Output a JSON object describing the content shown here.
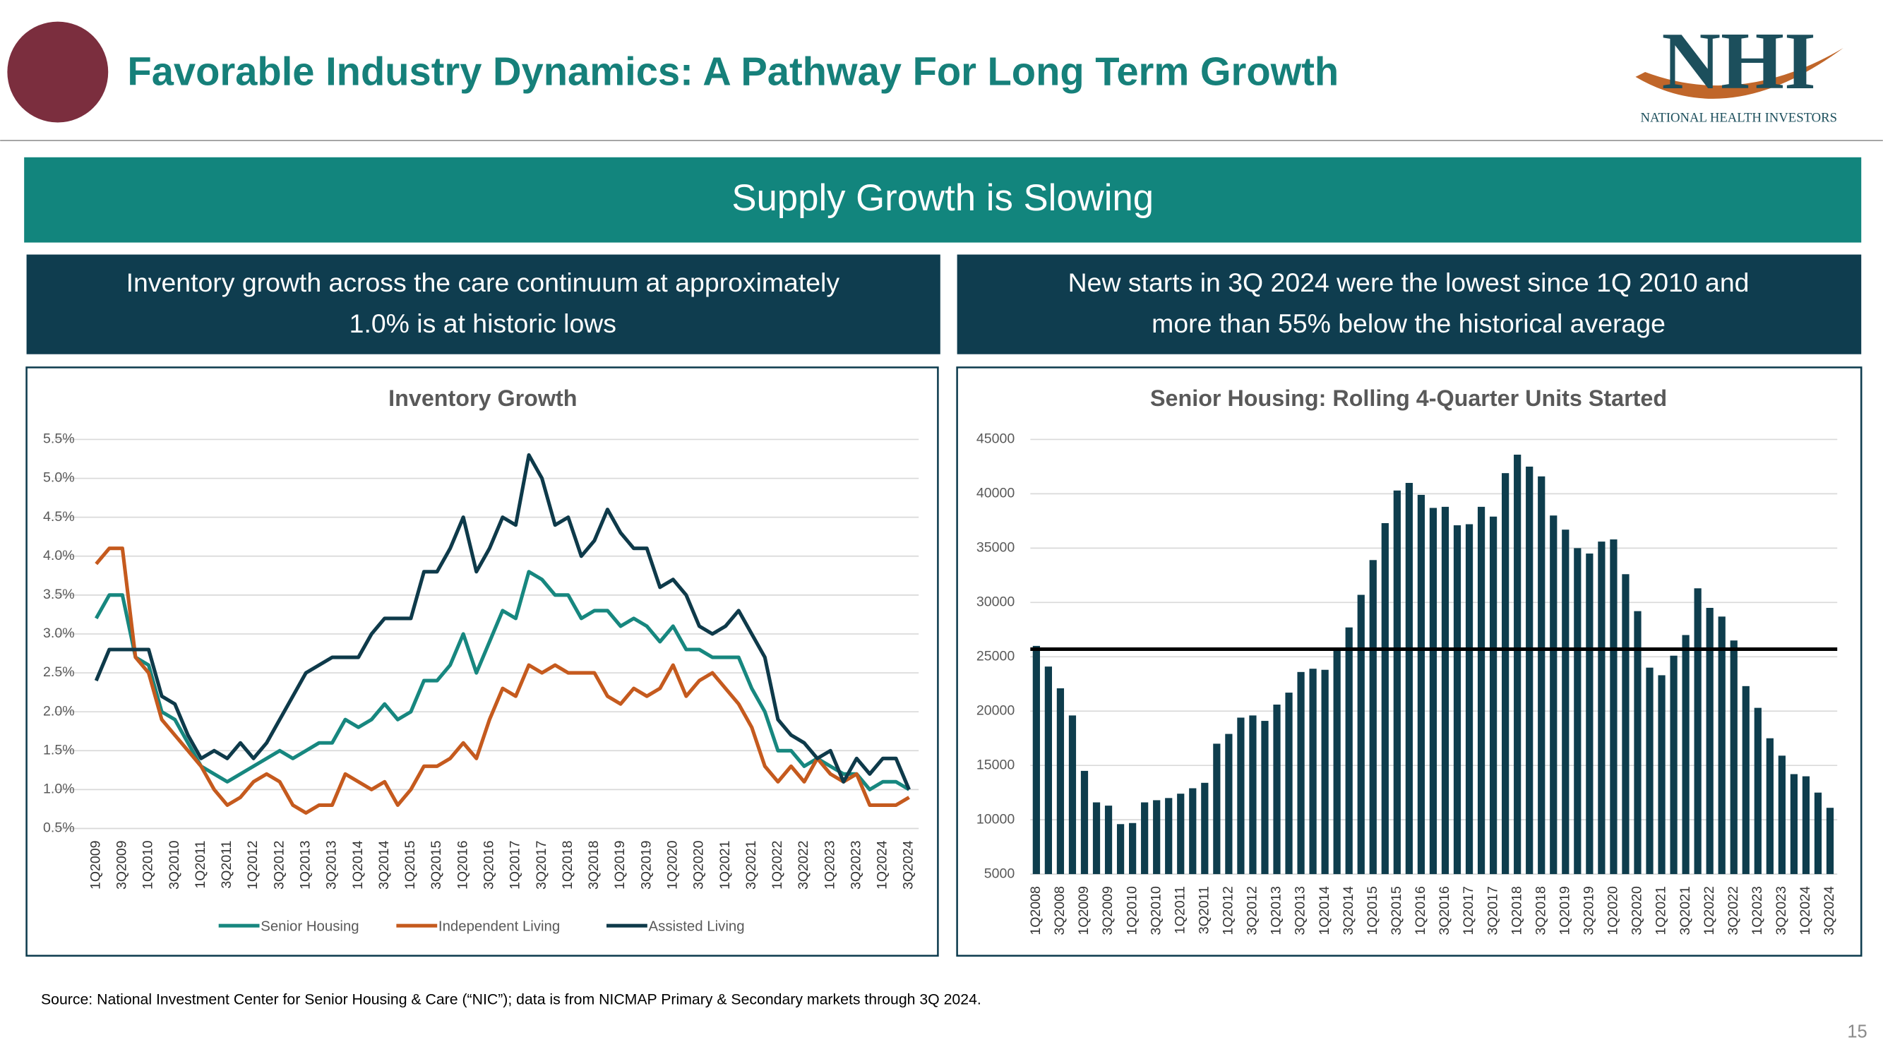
{
  "header": {
    "title": "Favorable Industry Dynamics: A Pathway For Long Term Growth"
  },
  "logo": {
    "mark": "NHI",
    "name": "NATIONAL HEALTH INVESTORS"
  },
  "banner": "Supply Growth is Slowing",
  "panels": [
    {
      "heading": [
        "Inventory growth across the care continuum at approximately",
        "1.0% is at historic lows"
      ]
    },
    {
      "heading": [
        "New starts in 3Q 2024 were the lowest since 1Q 2010 and",
        "more than 55% below the historical average"
      ]
    }
  ],
  "chart_data": [
    {
      "type": "line",
      "title": "Inventory Growth",
      "categories": [
        "1Q2009",
        null,
        "3Q2009",
        null,
        "1Q2010",
        null,
        "3Q2010",
        null,
        "1Q2011",
        null,
        "3Q2011",
        null,
        "1Q2012",
        null,
        "3Q2012",
        null,
        "1Q2013",
        null,
        "3Q2013",
        null,
        "1Q2014",
        null,
        "3Q2014",
        null,
        "1Q2015",
        null,
        "3Q2015",
        null,
        "1Q2016",
        null,
        "3Q2016",
        null,
        "1Q2017",
        null,
        "3Q2017",
        null,
        "1Q2018",
        null,
        "3Q2018",
        null,
        "1Q2019",
        null,
        "3Q2019",
        null,
        "1Q2020",
        null,
        "3Q2020",
        null,
        "1Q2021",
        null,
        "3Q2021",
        null,
        "1Q2022",
        null,
        "3Q2022",
        null,
        "1Q2023",
        null,
        "3Q2023",
        null,
        "1Q2024",
        null,
        "3Q2024"
      ],
      "series": [
        {
          "name": "Senior Housing",
          "color": "#17877f",
          "values": [
            3.2,
            3.5,
            3.5,
            2.7,
            2.6,
            2.0,
            1.9,
            1.6,
            1.3,
            1.2,
            1.1,
            1.2,
            1.3,
            1.4,
            1.5,
            1.4,
            1.5,
            1.6,
            1.6,
            1.9,
            1.8,
            1.9,
            2.1,
            1.9,
            2.0,
            2.4,
            2.4,
            2.6,
            3.0,
            2.5,
            2.9,
            3.3,
            3.2,
            3.8,
            3.7,
            3.5,
            3.5,
            3.2,
            3.3,
            3.3,
            3.1,
            3.2,
            3.1,
            2.9,
            3.1,
            2.8,
            2.8,
            2.7,
            2.7,
            2.7,
            2.3,
            2.0,
            1.5,
            1.5,
            1.3,
            1.4,
            1.3,
            1.2,
            1.2,
            1.0,
            1.1,
            1.1,
            1.0
          ]
        },
        {
          "name": "Independent Living",
          "color": "#c55a1e",
          "values": [
            3.9,
            4.1,
            4.1,
            2.7,
            2.5,
            1.9,
            1.7,
            1.5,
            1.3,
            1.0,
            0.8,
            0.9,
            1.1,
            1.2,
            1.1,
            0.8,
            0.7,
            0.8,
            0.8,
            1.2,
            1.1,
            1.0,
            1.1,
            0.8,
            1.0,
            1.3,
            1.3,
            1.4,
            1.6,
            1.4,
            1.9,
            2.3,
            2.2,
            2.6,
            2.5,
            2.6,
            2.5,
            2.5,
            2.5,
            2.2,
            2.1,
            2.3,
            2.2,
            2.3,
            2.6,
            2.2,
            2.4,
            2.5,
            2.3,
            2.1,
            1.8,
            1.3,
            1.1,
            1.3,
            1.1,
            1.4,
            1.2,
            1.1,
            1.2,
            0.8,
            0.8,
            0.8,
            0.9
          ]
        },
        {
          "name": "Assisted Living",
          "color": "#0e3a4a",
          "values": [
            2.4,
            2.8,
            2.8,
            2.8,
            2.8,
            2.2,
            2.1,
            1.7,
            1.4,
            1.5,
            1.4,
            1.6,
            1.4,
            1.6,
            1.9,
            2.2,
            2.5,
            2.6,
            2.7,
            2.7,
            2.7,
            3.0,
            3.2,
            3.2,
            3.2,
            3.8,
            3.8,
            4.1,
            4.5,
            3.8,
            4.1,
            4.5,
            4.4,
            5.3,
            5.0,
            4.4,
            4.5,
            4.0,
            4.2,
            4.6,
            4.3,
            4.1,
            4.1,
            3.6,
            3.7,
            3.5,
            3.1,
            3.0,
            3.1,
            3.3,
            3.0,
            2.7,
            1.9,
            1.7,
            1.6,
            1.4,
            1.5,
            1.1,
            1.4,
            1.2,
            1.4,
            1.4,
            1.0
          ]
        }
      ],
      "ylim": [
        0.5,
        5.5
      ],
      "yticks": [
        {
          "value": 0.5,
          "label": "0.5%"
        },
        {
          "value": 1.0,
          "label": "1.0%"
        },
        {
          "value": 1.5,
          "label": "1.5%"
        },
        {
          "value": 2.0,
          "label": "2.0%"
        },
        {
          "value": 2.5,
          "label": "2.5%"
        },
        {
          "value": 3.0,
          "label": "3.0%"
        },
        {
          "value": 3.5,
          "label": "3.5%"
        },
        {
          "value": 4.0,
          "label": "4.0%"
        },
        {
          "value": 4.5,
          "label": "4.5%"
        },
        {
          "value": 5.0,
          "label": "5.0%"
        },
        {
          "value": 5.5,
          "label": "5.5%"
        }
      ],
      "grid": true,
      "legend": "bottom"
    },
    {
      "type": "bar",
      "title": "Senior Housing: Rolling 4-Quarter Units Started",
      "categories": [
        "1Q2008",
        null,
        "3Q2008",
        null,
        "1Q2009",
        null,
        "3Q2009",
        null,
        "1Q2010",
        null,
        "3Q2010",
        null,
        "1Q2011",
        null,
        "3Q2011",
        null,
        "1Q2012",
        null,
        "3Q2012",
        null,
        "1Q2013",
        null,
        "3Q2013",
        null,
        "1Q2014",
        null,
        "3Q2014",
        null,
        "1Q2015",
        null,
        "3Q2015",
        null,
        "1Q2016",
        null,
        "3Q2016",
        null,
        "1Q2017",
        null,
        "3Q2017",
        null,
        "1Q2018",
        null,
        "3Q2018",
        null,
        "1Q2019",
        null,
        "3Q2019",
        null,
        "1Q2020",
        null,
        "3Q2020",
        null,
        "1Q2021",
        null,
        "3Q2021",
        null,
        "1Q2022",
        null,
        "3Q2022",
        null,
        "1Q2023",
        null,
        "3Q2023",
        null,
        "1Q2024",
        null,
        "3Q2024"
      ],
      "values": [
        26000,
        24100,
        22100,
        19600,
        14500,
        11600,
        11300,
        9600,
        9700,
        11600,
        11800,
        12000,
        12400,
        12900,
        13400,
        17000,
        17900,
        19400,
        19600,
        19100,
        20600,
        21700,
        23600,
        23900,
        23800,
        25600,
        27700,
        30700,
        33900,
        37300,
        40300,
        41000,
        39900,
        38700,
        38800,
        37100,
        37200,
        38800,
        37900,
        41900,
        43600,
        42500,
        41600,
        38000,
        36700,
        35000,
        34500,
        35600,
        35800,
        32600,
        29200,
        24000,
        23300,
        25100,
        27000,
        31300,
        29500,
        28700,
        26500,
        22300,
        20300,
        17500,
        15900,
        14200,
        14000,
        12500,
        11100
      ],
      "color": "#0e3d4d",
      "reference_line": 25700,
      "ylim": [
        5000,
        45000
      ],
      "yticks": [
        5000,
        10000,
        15000,
        20000,
        25000,
        30000,
        35000,
        40000,
        45000
      ],
      "grid": true
    }
  ],
  "source": "Source:  National Investment Center for Senior Housing & Care (“NIC”); data is from NICMAP Primary & Secondary markets through 3Q 2024.",
  "page_number": "15"
}
